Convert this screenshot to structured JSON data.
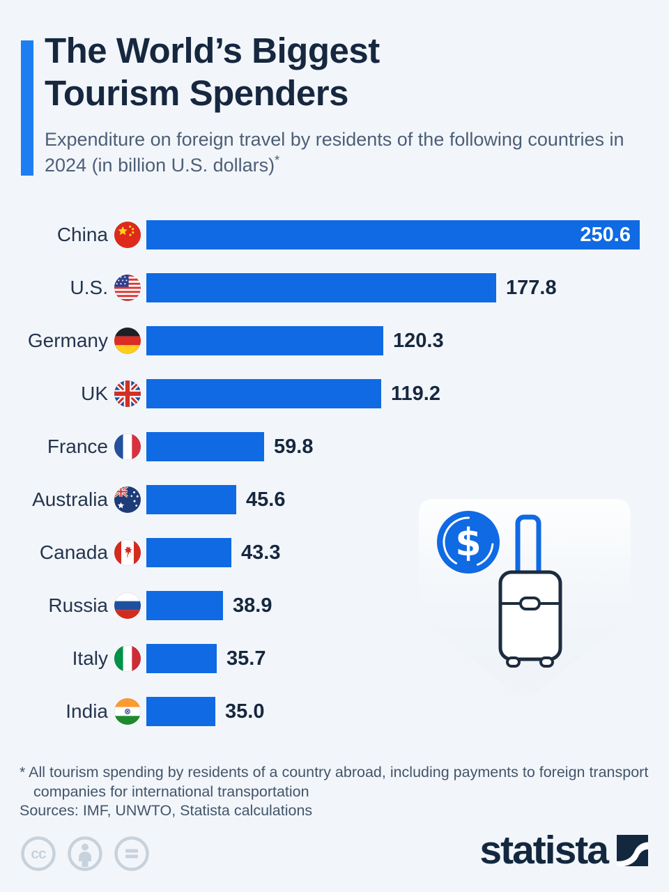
{
  "header": {
    "title_line1": "The World’s Biggest",
    "title_line2": "Tourism Spenders",
    "subtitle": "Expenditure on foreign travel by residents of the following countries in 2024 (in billion U.S. dollars)",
    "subtitle_note_marker": "*",
    "accent_color": "#1d7ef2"
  },
  "chart_data": {
    "type": "bar",
    "orientation": "horizontal",
    "title": "The World’s Biggest Tourism Spenders",
    "subtitle": "Expenditure on foreign travel by residents of the following countries in 2024 (in billion U.S. dollars)*",
    "unit": "billion U.S. dollars",
    "year": "2024",
    "xlabel": "",
    "ylabel": "",
    "xlim": [
      0,
      250.6
    ],
    "grid": false,
    "legend": "none",
    "bar_color": "#0f6ae3",
    "categories": [
      "China",
      "U.S.",
      "Germany",
      "UK",
      "France",
      "Australia",
      "Canada",
      "Russia",
      "Italy",
      "India"
    ],
    "values": [
      250.6,
      177.8,
      120.3,
      119.2,
      59.8,
      45.6,
      43.3,
      38.9,
      35.7,
      35.0
    ],
    "rows": [
      {
        "label": "China",
        "flag": "china",
        "value": 250.6,
        "value_display": "250.6",
        "value_inside": true
      },
      {
        "label": "U.S.",
        "flag": "us",
        "value": 177.8,
        "value_display": "177.8",
        "value_inside": false
      },
      {
        "label": "Germany",
        "flag": "germany",
        "value": 120.3,
        "value_display": "120.3",
        "value_inside": false
      },
      {
        "label": "UK",
        "flag": "uk",
        "value": 119.2,
        "value_display": "119.2",
        "value_inside": false
      },
      {
        "label": "France",
        "flag": "france",
        "value": 59.8,
        "value_display": "59.8",
        "value_inside": false
      },
      {
        "label": "Australia",
        "flag": "australia",
        "value": 45.6,
        "value_display": "45.6",
        "value_inside": false
      },
      {
        "label": "Canada",
        "flag": "canada",
        "value": 43.3,
        "value_display": "43.3",
        "value_inside": false
      },
      {
        "label": "Russia",
        "flag": "russia",
        "value": 38.9,
        "value_display": "38.9",
        "value_inside": false
      },
      {
        "label": "Italy",
        "flag": "italy",
        "value": 35.7,
        "value_display": "35.7",
        "value_inside": false
      },
      {
        "label": "India",
        "flag": "india",
        "value": 35.0,
        "value_display": "35.0",
        "value_inside": false
      }
    ]
  },
  "illustration": {
    "icons": [
      "dollar-coin-icon",
      "suitcase-icon",
      "shield-watermark"
    ]
  },
  "footer": {
    "footnote_line1": "* All tourism spending by residents of a country abroad, including payments to foreign transport",
    "footnote_line2": "companies for international transportation",
    "sources": "Sources: IMF, UNWTO, Statista calculations",
    "license_icons": [
      "cc-icon",
      "cc-attribution-icon",
      "cc-nd-icon"
    ],
    "brand": "statista"
  }
}
